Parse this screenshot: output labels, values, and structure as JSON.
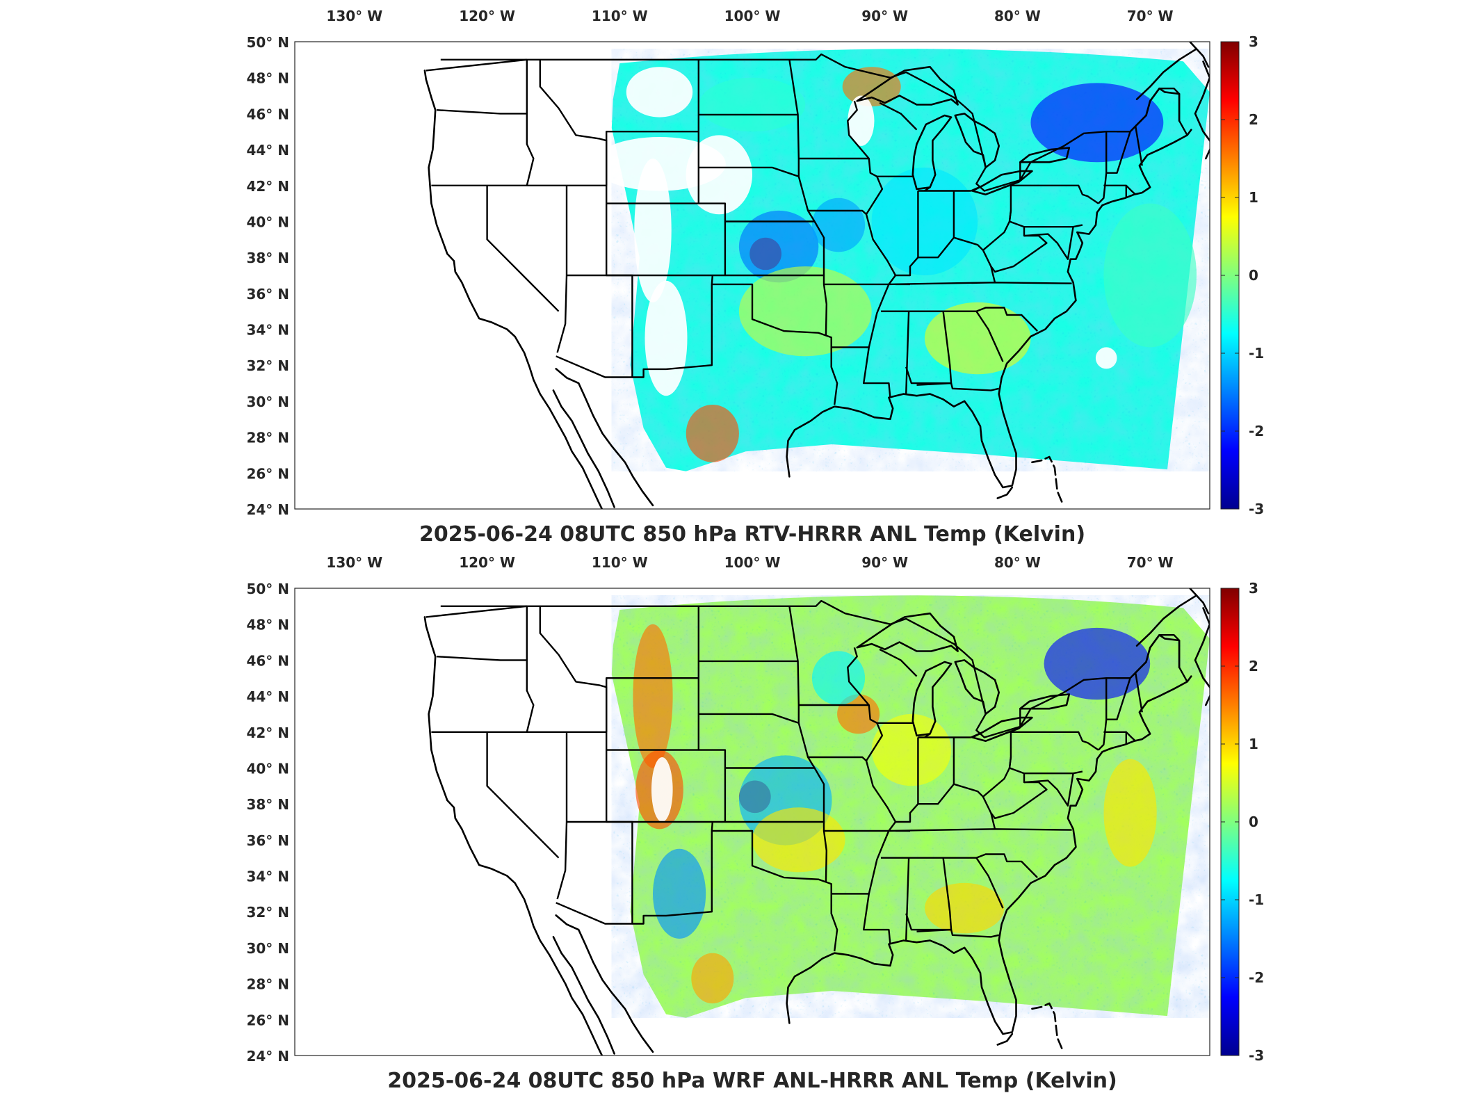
{
  "panels": [
    {
      "title": "2025-06-24 08UTC 850 hPa RTV-HRRR ANL Temp (Kelvin)",
      "lon_ticks": [
        "130° W",
        "120° W",
        "110° W",
        "100° W",
        "90° W",
        "80° W",
        "70° W"
      ],
      "lat_ticks": [
        "50° N",
        "48° N",
        "46° N",
        "44° N",
        "42° N",
        "40° N",
        "38° N",
        "36° N",
        "34° N",
        "32° N",
        "30° N",
        "28° N",
        "26° N",
        "24° N"
      ],
      "colorbar_ticks": [
        "3",
        "2",
        "1",
        "0",
        "-1",
        "-2",
        "-3"
      ]
    },
    {
      "title": "2025-06-24 08UTC 850 hPa WRF ANL-HRRR ANL Temp (Kelvin)",
      "lon_ticks": [
        "130° W",
        "120° W",
        "110° W",
        "100° W",
        "90° W",
        "80° W",
        "70° W"
      ],
      "lat_ticks": [
        "50° N",
        "48° N",
        "46° N",
        "44° N",
        "42° N",
        "40° N",
        "38° N",
        "36° N",
        "34° N",
        "32° N",
        "30° N",
        "28° N",
        "26° N",
        "24° N"
      ],
      "colorbar_ticks": [
        "3",
        "2",
        "1",
        "0",
        "-1",
        "-2",
        "-3"
      ]
    }
  ],
  "map_data": {
    "projection": "cylindrical lat/lon",
    "lon_range": [
      -134.5,
      -65.5
    ],
    "lat_range": [
      24,
      50
    ],
    "colormap": "jet",
    "clim": [
      -3,
      3
    ],
    "variable": "Temp (Kelvin)",
    "level": "850 hPa"
  }
}
